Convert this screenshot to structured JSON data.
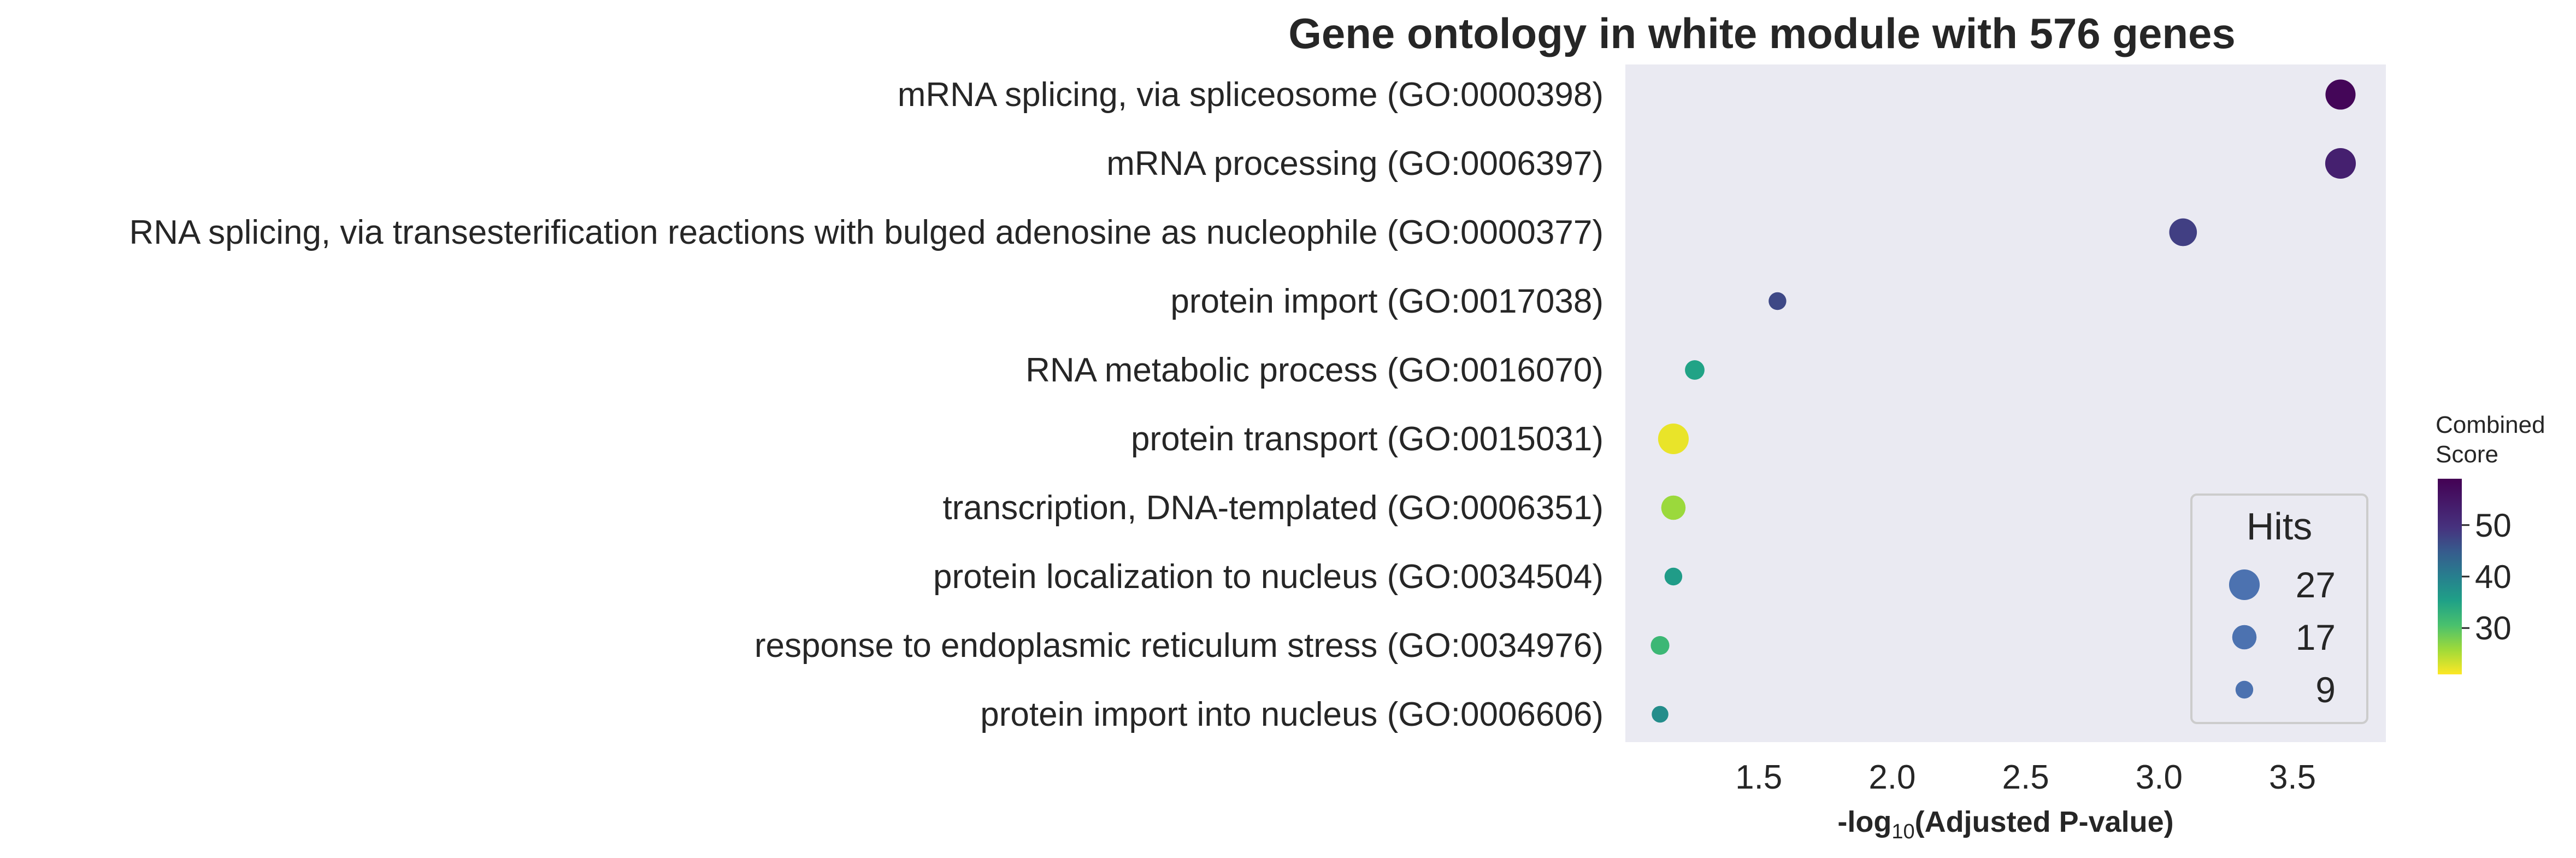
{
  "chart_data": {
    "type": "scatter",
    "title": "Gene ontology in white module with 576 genes",
    "xlabel_prefix": "-log",
    "xlabel_sub": "10",
    "xlabel_suffix": "(Adjusted P-value)",
    "xlim": [
      1.0,
      3.85
    ],
    "xticks": [
      1.5,
      2.0,
      2.5,
      3.0,
      3.5
    ],
    "xtick_labels": [
      "1.5",
      "2.0",
      "2.5",
      "3.0",
      "3.5"
    ],
    "grid": false,
    "points": [
      {
        "label": "mRNA splicing, via spliceosome (GO:0000398)",
        "x": 3.68,
        "hits": 26,
        "score": 58
      },
      {
        "label": "mRNA processing (GO:0006397)",
        "x": 3.68,
        "hits": 27,
        "score": 53
      },
      {
        "label": "RNA splicing, via transesterification reactions with bulged adenosine as nucleophile (GO:0000377)",
        "x": 3.09,
        "hits": 22,
        "score": 48
      },
      {
        "label": "protein import (GO:0017038)",
        "x": 1.57,
        "hits": 9,
        "score": 47
      },
      {
        "label": "RNA metabolic process (GO:0016070)",
        "x": 1.26,
        "hits": 11,
        "score": 35
      },
      {
        "label": "protein transport (GO:0015031)",
        "x": 1.18,
        "hits": 27,
        "score": 22
      },
      {
        "label": "transcription, DNA-templated (GO:0006351)",
        "x": 1.18,
        "hits": 17,
        "score": 26
      },
      {
        "label": "protein localization to nucleus (GO:0034504)",
        "x": 1.18,
        "hits": 9,
        "score": 36
      },
      {
        "label": "response to endoplasmic reticulum stress (GO:0034976)",
        "x": 1.13,
        "hits": 10,
        "score": 32
      },
      {
        "label": "protein import into nucleus (GO:0006606)",
        "x": 1.13,
        "hits": 8,
        "score": 38
      }
    ],
    "size_legend": {
      "title": "Hits",
      "entries": [
        {
          "label": "27",
          "hits": 27
        },
        {
          "label": "17",
          "hits": 17
        },
        {
          "label": "9",
          "hits": 9
        }
      ],
      "marker_color": "#4c72b0",
      "placement": "lower-right"
    },
    "colorbar": {
      "title_line1": "Combined",
      "title_line2": "Score",
      "min": 21,
      "max": 59,
      "ticks": [
        30,
        40,
        50
      ],
      "tick_labels": [
        "30",
        "40",
        "50"
      ],
      "colormap": "viridis_r"
    },
    "background_color": "#eaeaf2"
  }
}
